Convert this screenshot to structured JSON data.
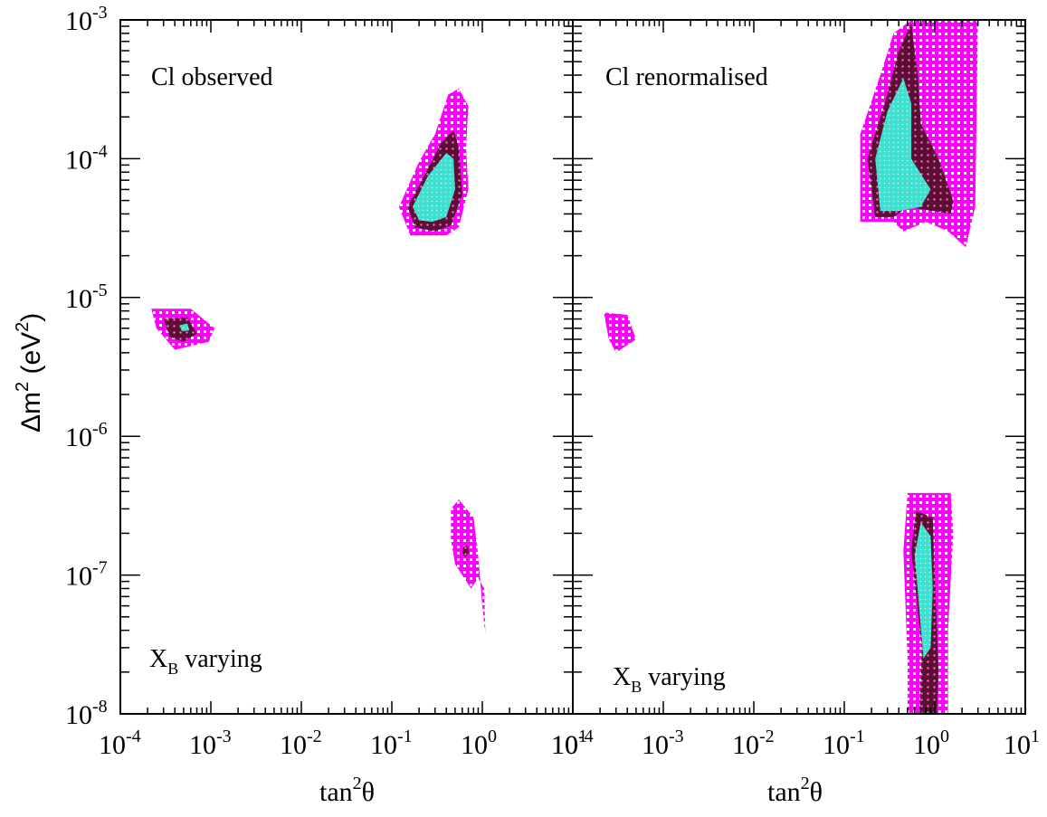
{
  "chart_data": {
    "type": "contour",
    "colors": {
      "region_99_73": "#ff00ff",
      "region_95_45": "#5a0f33",
      "region_90": "#40e0d0",
      "frame": "#000000"
    },
    "x_axis": {
      "label": "tan",
      "label_sup": "2",
      "label_suffix": "θ",
      "scale": "log",
      "range": [
        0.0001,
        10
      ],
      "tick_bases": [
        "10",
        "10",
        "10",
        "10",
        "10",
        "10"
      ],
      "tick_exponents": [
        "-4",
        "-3",
        "-2",
        "-1",
        "0",
        "1"
      ]
    },
    "y_axis": {
      "label_prefix": "Δm",
      "label_sup": "2",
      "label_mid": " (eV",
      "label_sup2": "2",
      "label_suffix": ")",
      "scale": "log",
      "range": [
        1e-08,
        0.001
      ],
      "tick_bases": [
        "10",
        "10",
        "10",
        "10",
        "10",
        "10"
      ],
      "tick_exponents": [
        "-8",
        "-7",
        "-6",
        "-5",
        "-4",
        "-3"
      ]
    },
    "panels": [
      {
        "title": "Cl observed",
        "subtitle_main": "X",
        "subtitle_sub": "B",
        "subtitle_rest": " varying",
        "regions": [
          {
            "level": "outer",
            "islands": [
              [
                [
                  0.00022,
                  8.3e-06
                ],
                [
                  0.0006,
                  8.3e-06
                ],
                [
                  0.0011,
                  6e-06
                ],
                [
                  0.00095,
                  4.8e-06
                ],
                [
                  0.0004,
                  4.2e-06
                ],
                [
                  0.00025,
                  6e-06
                ]
              ],
              [
                [
                  0.16,
                  2.8e-05
                ],
                [
                  0.12,
                  4.5e-05
                ],
                [
                  0.2,
                  9.5e-05
                ],
                [
                  0.3,
                  0.00015
                ],
                [
                  0.42,
                  0.00029
                ],
                [
                  0.55,
                  0.00032
                ],
                [
                  0.7,
                  0.00024
                ],
                [
                  0.66,
                  0.00012
                ],
                [
                  0.7,
                  6e-05
                ],
                [
                  0.55,
                  3.2e-05
                ],
                [
                  0.4,
                  2.8e-05
                ]
              ],
              [
                [
                  0.45,
                  3e-07
                ],
                [
                  0.55,
                  3.5e-07
                ],
                [
                  0.8,
                  2.6e-07
                ],
                [
                  0.9,
                  1.4e-07
                ],
                [
                  1.0,
                  6e-08
                ],
                [
                  1.08,
                  3.8e-08
                ],
                [
                  1.05,
                  8e-08
                ],
                [
                  0.9,
                  9.5e-08
                ],
                [
                  0.75,
                  8e-08
                ],
                [
                  0.5,
                  1.2e-07
                ],
                [
                  0.45,
                  1.8e-07
                ]
              ]
            ]
          },
          {
            "level": "middle",
            "islands": [
              [
                [
                  0.0003,
                  7e-06
                ],
                [
                  0.00055,
                  7.2e-06
                ],
                [
                  0.0007,
                  5.5e-06
                ],
                [
                  0.0005,
                  4.8e-06
                ],
                [
                  0.00035,
                  5.2e-06
                ]
              ],
              [
                [
                  0.18,
                  3.2e-05
                ],
                [
                  0.15,
                  4.5e-05
                ],
                [
                  0.25,
                  8.5e-05
                ],
                [
                  0.35,
                  0.00013
                ],
                [
                  0.48,
                  0.00016
                ],
                [
                  0.55,
                  0.00012
                ],
                [
                  0.6,
                  5.5e-05
                ],
                [
                  0.45,
                  3.3e-05
                ],
                [
                  0.3,
                  3e-05
                ]
              ],
              [
                [
                  0.62,
                  1.6e-07
                ],
                [
                  0.68,
                  1.65e-07
                ],
                [
                  0.72,
                  1.45e-07
                ],
                [
                  0.65,
                  1.35e-07
                ],
                [
                  0.6,
                  1.45e-07
                ]
              ]
            ]
          },
          {
            "level": "inner",
            "islands": [
              [
                [
                  0.00045,
                  6.3e-06
                ],
                [
                  0.00055,
                  6.5e-06
                ],
                [
                  0.00058,
                  5.8e-06
                ],
                [
                  0.00048,
                  5.7e-06
                ]
              ],
              [
                [
                  0.2,
                  3.6e-05
                ],
                [
                  0.17,
                  4.5e-05
                ],
                [
                  0.25,
                  7.5e-05
                ],
                [
                  0.4,
                  0.00011
                ],
                [
                  0.48,
                  0.0001
                ],
                [
                  0.5,
                  6e-05
                ],
                [
                  0.4,
                  3.8e-05
                ],
                [
                  0.28,
                  3.5e-05
                ]
              ]
            ]
          }
        ]
      },
      {
        "title": "Cl renormalised",
        "subtitle_main": "X",
        "subtitle_sub": "B",
        "subtitle_rest": " varying",
        "regions": [
          {
            "level": "outer",
            "islands": [
              [
                [
                  0.15,
                  3.5e-05
                ],
                [
                  0.15,
                  0.00015
                ],
                [
                  0.25,
                  0.0004
                ],
                [
                  0.35,
                  0.0008
                ],
                [
                  0.55,
                  0.001
                ],
                [
                  3.0,
                  0.001
                ],
                [
                  2.8,
                  4.5e-05
                ],
                [
                  2.2,
                  2.3e-05
                ],
                [
                  1.4,
                  3e-05
                ],
                [
                  0.8,
                  3.5e-05
                ],
                [
                  0.45,
                  3e-05
                ],
                [
                  0.35,
                  3.5e-05
                ]
              ],
              [
                [
                  0.00022,
                  7.8e-06
                ],
                [
                  0.0004,
                  7.5e-06
                ],
                [
                  0.0005,
                  5e-06
                ],
                [
                  0.0003,
                  4e-06
                ],
                [
                  0.00025,
                  5e-06
                ]
              ],
              [
                [
                  0.5,
                  1e-08
                ],
                [
                  0.5,
                  2.5e-08
                ],
                [
                  0.45,
                  1.5e-07
                ],
                [
                  0.5,
                  3.9e-07
                ],
                [
                  1.5,
                  3.9e-07
                ],
                [
                  1.6,
                  2e-07
                ],
                [
                  1.4,
                  4e-08
                ],
                [
                  1.4,
                  1e-08
                ]
              ]
            ]
          },
          {
            "level": "middle",
            "islands": [
              [
                [
                  0.22,
                  3.8e-05
                ],
                [
                  0.18,
                  0.0001
                ],
                [
                  0.28,
                  0.00025
                ],
                [
                  0.4,
                  0.0006
                ],
                [
                  0.55,
                  0.00095
                ],
                [
                  0.65,
                  0.0004
                ],
                [
                  0.7,
                  0.00018
                ],
                [
                  1.1,
                  0.0001
                ],
                [
                  1.6,
                  5e-05
                ],
                [
                  1.5,
                  4e-05
                ],
                [
                  0.5,
                  4.5e-05
                ],
                [
                  0.35,
                  3.8e-05
                ]
              ],
              [
                [
                  0.68,
                  1e-08
                ],
                [
                  0.72,
                  3e-08
                ],
                [
                  0.55,
                  1.5e-07
                ],
                [
                  0.62,
                  2.9e-07
                ],
                [
                  0.95,
                  2.6e-07
                ],
                [
                  1.0,
                  1e-07
                ],
                [
                  1.1,
                  2e-08
                ],
                [
                  1.05,
                  1e-08
                ]
              ]
            ]
          },
          {
            "level": "inner",
            "islands": [
              [
                [
                  0.25,
                  4.2e-05
                ],
                [
                  0.22,
                  0.0001
                ],
                [
                  0.3,
                  0.00022
                ],
                [
                  0.45,
                  0.00038
                ],
                [
                  0.55,
                  0.00025
                ],
                [
                  0.55,
                  0.0001
                ],
                [
                  0.9,
                  6e-05
                ],
                [
                  0.7,
                  4.5e-05
                ],
                [
                  0.4,
                  4.2e-05
                ]
              ],
              [
                [
                  0.75,
                  2.5e-08
                ],
                [
                  0.6,
                  1.4e-07
                ],
                [
                  0.7,
                  2.4e-07
                ],
                [
                  0.9,
                  1.9e-07
                ],
                [
                  0.95,
                  8e-08
                ],
                [
                  0.9,
                  3e-08
                ]
              ]
            ]
          }
        ]
      }
    ]
  }
}
